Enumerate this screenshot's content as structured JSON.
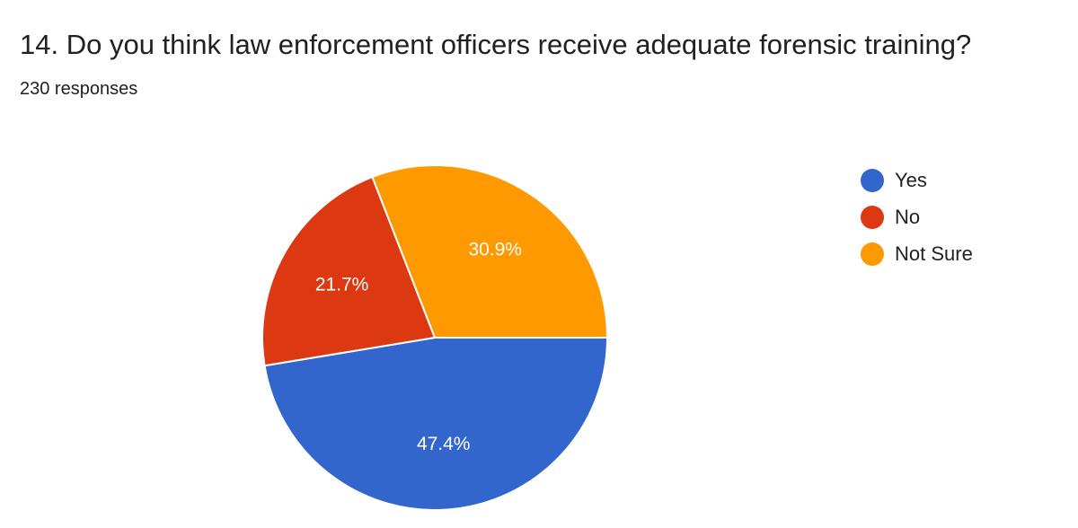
{
  "question": {
    "title": "14. Do you think law enforcement officers receive adequate forensic training?",
    "responses": "230 responses"
  },
  "chart_data": {
    "type": "pie",
    "slices": [
      {
        "label": "Yes",
        "value": 47.4,
        "value_label": "47.4%",
        "color": "#3366cc"
      },
      {
        "label": "No",
        "value": 21.7,
        "value_label": "21.7%",
        "color": "#dc3912"
      },
      {
        "label": "Not Sure",
        "value": 30.9,
        "value_label": "30.9%",
        "color": "#ff9900"
      }
    ],
    "legend_position": "right",
    "start": "3 o'clock, clockwise"
  }
}
